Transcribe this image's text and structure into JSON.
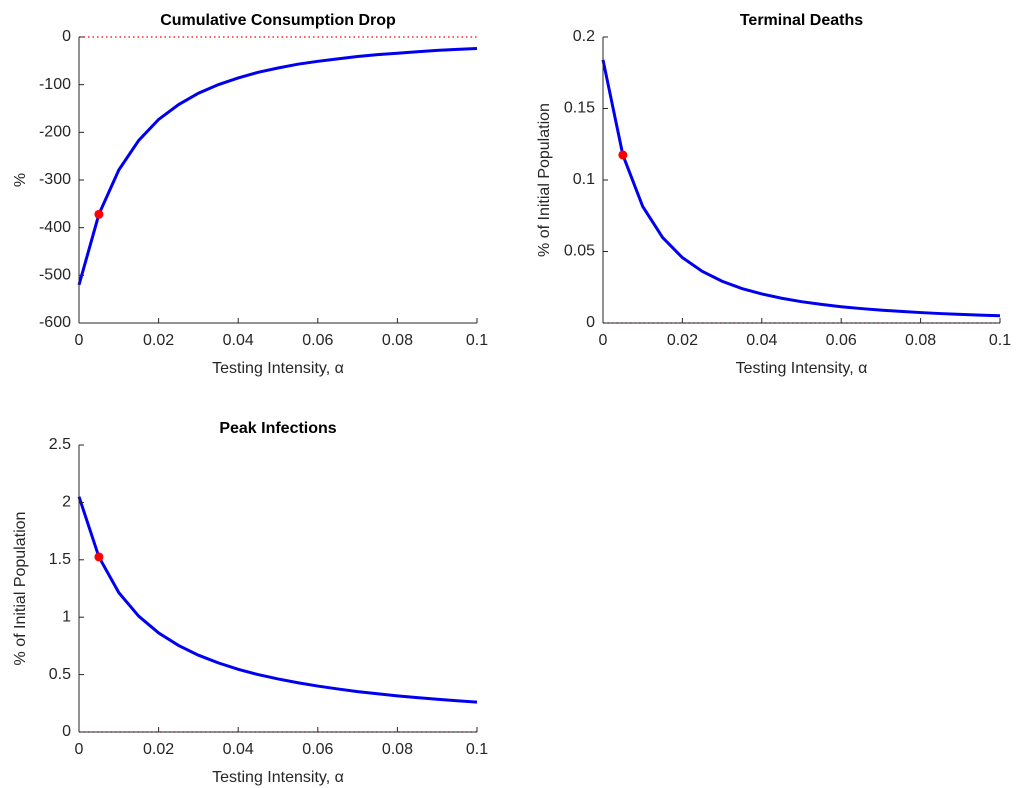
{
  "chart_data": [
    {
      "type": "line",
      "title": "Cumulative Consumption Drop",
      "xlabel": "Testing Intensity, α",
      "ylabel": "%",
      "x": [
        0,
        0.005,
        0.01,
        0.015,
        0.02,
        0.025,
        0.03,
        0.035,
        0.04,
        0.045,
        0.05,
        0.055,
        0.06,
        0.065,
        0.07,
        0.075,
        0.08,
        0.085,
        0.09,
        0.095,
        0.1
      ],
      "series": [
        {
          "color": "#0000ee",
          "values": [
            -520,
            -372,
            -279,
            -217,
            -173,
            -142,
            -118,
            -100,
            -86,
            -74,
            -65,
            -57,
            -51,
            -46,
            -41,
            -37,
            -34,
            -31,
            -28,
            -26,
            -24
          ]
        }
      ],
      "marker": {
        "x": 0.005,
        "y": -372,
        "color": "#ff0000"
      },
      "hline": {
        "y": 0,
        "color": "#ff0000",
        "style": "dotted"
      },
      "xlim": [
        0,
        0.1
      ],
      "ylim": [
        -600,
        0
      ],
      "xticks": [
        0,
        0.02,
        0.04,
        0.06,
        0.08,
        0.1
      ],
      "yticks": [
        -600,
        -500,
        -400,
        -300,
        -200,
        -100,
        0
      ]
    },
    {
      "type": "line",
      "title": "Terminal Deaths",
      "xlabel": "Testing Intensity, α",
      "ylabel": "% of Initial Population",
      "x": [
        0,
        0.005,
        0.01,
        0.015,
        0.02,
        0.025,
        0.03,
        0.035,
        0.04,
        0.045,
        0.05,
        0.055,
        0.06,
        0.065,
        0.07,
        0.075,
        0.08,
        0.085,
        0.09,
        0.095,
        0.1
      ],
      "series": [
        {
          "color": "#0000ee",
          "values": [
            0.184,
            0.1175,
            0.0815,
            0.0598,
            0.0457,
            0.0361,
            0.0292,
            0.0241,
            0.0203,
            0.0173,
            0.0149,
            0.013,
            0.0114,
            0.0101,
            0.009,
            0.0081,
            0.0073,
            0.0066,
            0.006,
            0.0055,
            0.0051
          ]
        }
      ],
      "marker": {
        "x": 0.005,
        "y": 0.1175,
        "color": "#ff0000"
      },
      "hline": {
        "y": 0,
        "color": "#ff0000",
        "style": "dotted"
      },
      "xlim": [
        0,
        0.1
      ],
      "ylim": [
        0,
        0.2
      ],
      "xticks": [
        0,
        0.02,
        0.04,
        0.06,
        0.08,
        0.1
      ],
      "yticks": [
        0,
        0.05,
        0.1,
        0.15,
        0.2
      ]
    },
    {
      "type": "line",
      "title": "Peak Infections",
      "xlabel": "Testing Intensity, α",
      "ylabel": "% of Initial Population",
      "x": [
        0,
        0.005,
        0.01,
        0.015,
        0.02,
        0.025,
        0.03,
        0.035,
        0.04,
        0.045,
        0.05,
        0.055,
        0.06,
        0.065,
        0.07,
        0.075,
        0.08,
        0.085,
        0.09,
        0.095,
        0.1
      ],
      "series": [
        {
          "color": "#0000ee",
          "values": [
            2.05,
            1.525,
            1.214,
            1.009,
            0.863,
            0.754,
            0.669,
            0.602,
            0.546,
            0.5,
            0.462,
            0.429,
            0.4,
            0.375,
            0.352,
            0.333,
            0.315,
            0.299,
            0.285,
            0.272,
            0.26
          ]
        }
      ],
      "marker": {
        "x": 0.005,
        "y": 1.525,
        "color": "#ff0000"
      },
      "hline": {
        "y": 0,
        "color": "#ff0000",
        "style": "dotted"
      },
      "xlim": [
        0,
        0.1
      ],
      "ylim": [
        0,
        2.5
      ],
      "xticks": [
        0,
        0.02,
        0.04,
        0.06,
        0.08,
        0.1
      ],
      "yticks": [
        0,
        0.5,
        1,
        1.5,
        2,
        2.5
      ]
    }
  ]
}
